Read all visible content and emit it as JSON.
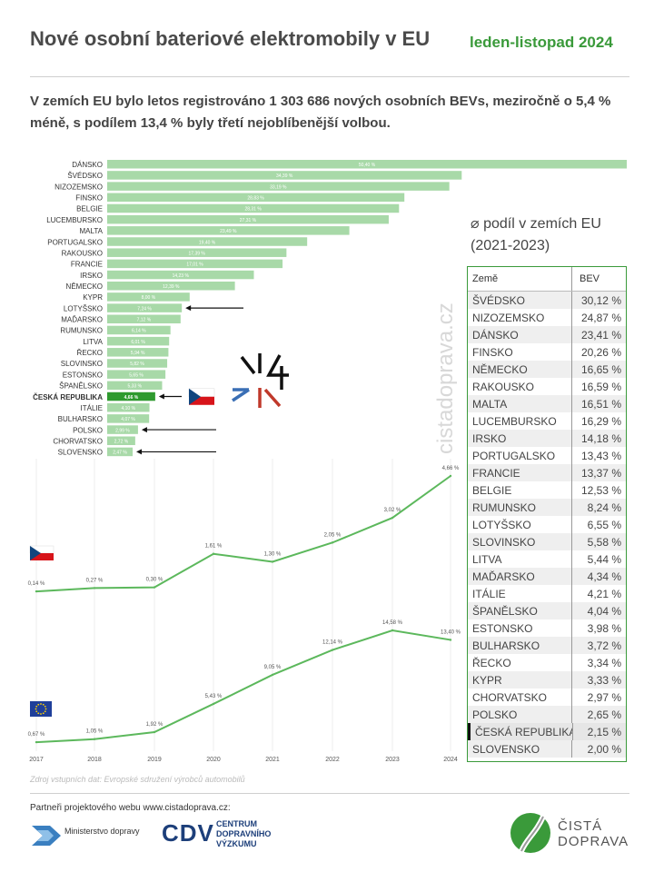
{
  "header": {
    "title": "Nové osobní bateriové elektromobily v EU",
    "period": "leden-listopad 2024",
    "subtitle": "V zemích EU bylo letos registrováno 1 303 686 nových osobních BEVs, meziročně o 5,4 % méně, s podílem 13,4 % byly třetí nejoblíbenější volbou."
  },
  "colors": {
    "accent": "#3a9a3a",
    "bar": "#a8d9a8",
    "bar_highlight": "#2f9a2f",
    "line": "#5cb85c"
  },
  "watermark": "cistadoprava.cz",
  "chart_data": [
    {
      "type": "bar",
      "orientation": "horizontal",
      "categories": [
        "DÁNSKO",
        "ŠVÉDSKO",
        "NIZOZEMSKO",
        "FINSKO",
        "BELGIE",
        "LUCEMBURSKO",
        "MALTA",
        "PORTUGALSKO",
        "RAKOUSKO",
        "FRANCIE",
        "IRSKO",
        "NĚMECKO",
        "KYPR",
        "LOTYŠSKO",
        "MAĎARSKO",
        "RUMUNSKO",
        "LITVA",
        "ŘECKO",
        "SLOVINSKO",
        "ESTONSKO",
        "ŠPANĚLSKO",
        "ČESKÁ REPUBLIKA",
        "ITÁLIE",
        "BULHARSKO",
        "POLSKO",
        "CHORVATSKO",
        "SLOVENSKO"
      ],
      "values": [
        50.4,
        34.39,
        33.19,
        28.83,
        28.31,
        27.31,
        23.49,
        19.4,
        17.39,
        17.01,
        14.23,
        12.39,
        8.0,
        7.24,
        7.12,
        6.14,
        6.01,
        5.94,
        5.82,
        5.65,
        5.33,
        4.66,
        4.1,
        4.07,
        2.99,
        2.72,
        2.47
      ],
      "value_labels": [
        "50,40 %",
        "34,39 %",
        "33,19 %",
        "28,83 %",
        "28,31 %",
        "27,31 %",
        "23,49 %",
        "19,40 %",
        "17,39 %",
        "17,01 %",
        "14,23 %",
        "12,39 %",
        "8,00 %",
        "7,24 %",
        "7,12 %",
        "6,14 %",
        "6,01 %",
        "5,94 %",
        "5,82 %",
        "5,65 %",
        "5,33 %",
        "4,66 %",
        "4,10 %",
        "4,07 %",
        "2,99 %",
        "2,72 %",
        "2,47 %"
      ],
      "highlight": "ČESKÁ REPUBLIKA",
      "arrows": [
        "LOTYŠSKO",
        "ČESKÁ REPUBLIKA",
        "POLSKO",
        "SLOVENSKO"
      ]
    },
    {
      "type": "line",
      "name_flag": "czech-flag",
      "x": [
        "2017",
        "2018",
        "2019",
        "2020",
        "2021",
        "2022",
        "2023",
        "2024"
      ],
      "values": [
        0.14,
        0.27,
        0.3,
        1.61,
        1.3,
        2.05,
        3.02,
        4.66
      ],
      "value_labels": [
        "0,14 %",
        "0,27 %",
        "0,30 %",
        "1,61 %",
        "1,30 %",
        "2,05 %",
        "3,02 %",
        "4,66 %"
      ]
    },
    {
      "type": "line",
      "name_flag": "eu-flag",
      "x": [
        "2017",
        "2018",
        "2019",
        "2020",
        "2021",
        "2022",
        "2023",
        "2024"
      ],
      "values": [
        0.67,
        1.05,
        1.92,
        5.43,
        9.05,
        12.14,
        14.58,
        13.4
      ],
      "value_labels": [
        "0,67 %",
        "1,05 %",
        "1,92 %",
        "5,43 %",
        "9,05 %",
        "12,14 %",
        "14,58 %",
        "13,40 %"
      ]
    }
  ],
  "avg_table": {
    "title_line1": "⌀ podíl v zemích EU",
    "title_line2": "(2021-2023)",
    "col_country": "Země",
    "col_value": "BEV",
    "rows": [
      {
        "country": "ŠVÉDSKO",
        "value": "30,12 %"
      },
      {
        "country": "NIZOZEMSKO",
        "value": "24,87 %"
      },
      {
        "country": "DÁNSKO",
        "value": "23,41 %"
      },
      {
        "country": "FINSKO",
        "value": "20,26 %"
      },
      {
        "country": "NĚMECKO",
        "value": "16,65 %"
      },
      {
        "country": "RAKOUSKO",
        "value": "16,59 %"
      },
      {
        "country": "MALTA",
        "value": "16,51 %"
      },
      {
        "country": "LUCEMBURSKO",
        "value": "16,29 %"
      },
      {
        "country": "IRSKO",
        "value": "14,18 %"
      },
      {
        "country": "PORTUGALSKO",
        "value": "13,43 %"
      },
      {
        "country": "FRANCIE",
        "value": "13,37 %"
      },
      {
        "country": "BELGIE",
        "value": "12,53 %"
      },
      {
        "country": "RUMUNSKO",
        "value": "8,24 %"
      },
      {
        "country": "LOTYŠSKO",
        "value": "6,55 %"
      },
      {
        "country": "SLOVINSKO",
        "value": "5,58 %"
      },
      {
        "country": "LITVA",
        "value": "5,44 %"
      },
      {
        "country": "MAĎARSKO",
        "value": "4,34 %"
      },
      {
        "country": "ITÁLIE",
        "value": "4,21 %"
      },
      {
        "country": "ŠPANĚLSKO",
        "value": "4,04 %"
      },
      {
        "country": "ESTONSKO",
        "value": "3,98 %"
      },
      {
        "country": "BULHARSKO",
        "value": "3,72 %"
      },
      {
        "country": "ŘECKO",
        "value": "3,34 %"
      },
      {
        "country": "KYPR",
        "value": "3,33 %"
      },
      {
        "country": "CHORVATSKO",
        "value": "2,97 %"
      },
      {
        "country": "POLSKO",
        "value": "2,65 %"
      },
      {
        "country": "ČESKÁ REPUBLIKA",
        "value": "2,15 %",
        "highlight": true
      },
      {
        "country": "SLOVENSKO",
        "value": "2,00 %"
      }
    ]
  },
  "footer": {
    "source": "Zdroj vstupních dat: Evropské sdružení výrobců automobilů",
    "partners": "Partneři projektového webu www.cistadoprava.cz:",
    "logo1": "Ministerstvo dopravy",
    "logo2_abbr": "CDV",
    "logo2_lines": [
      "CENTRUM",
      "DOPRAVNÍHO",
      "VÝZKUMU"
    ],
    "logo3_lines": [
      "ČISTÁ",
      "DOPRAVA"
    ]
  }
}
